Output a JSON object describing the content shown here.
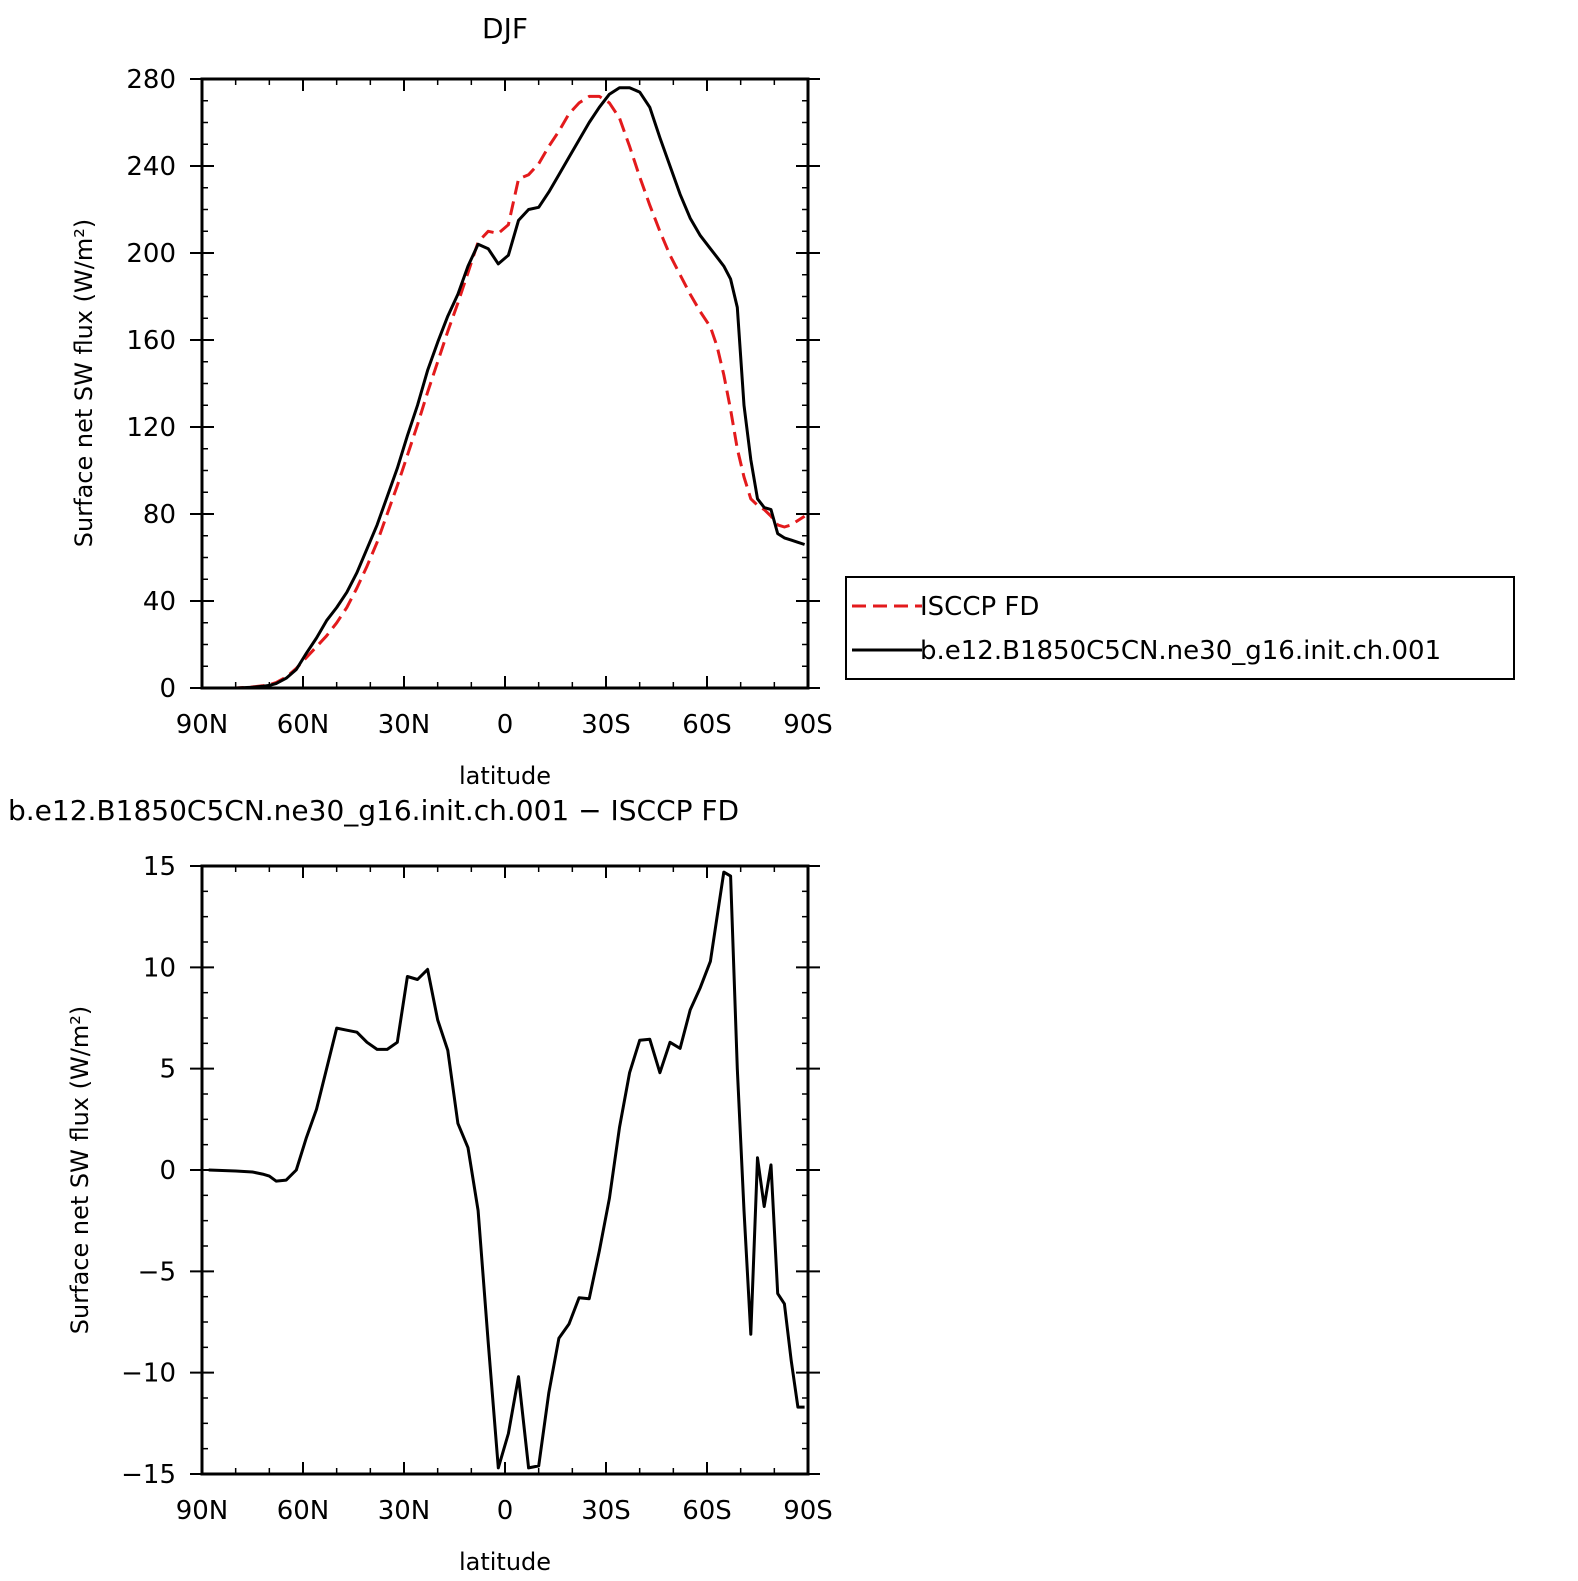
{
  "chart_data": [
    {
      "type": "line",
      "title": "DJF",
      "xlabel": "latitude",
      "ylabel": "Surface net SW flux (W/m²)",
      "xlim": [
        90,
        -90
      ],
      "ylim": [
        0,
        280
      ],
      "x_ticks": [
        90,
        60,
        30,
        0,
        -30,
        -60,
        -90
      ],
      "x_ticklabels": [
        "90N",
        "60N",
        "30N",
        "0",
        "30S",
        "60S",
        "90S"
      ],
      "y_ticks": [
        0,
        40,
        80,
        120,
        160,
        200,
        240,
        280
      ],
      "y_ticklabels": [
        "0",
        "40",
        "80",
        "120",
        "160",
        "200",
        "240",
        "280"
      ],
      "grid": false,
      "legend": "right",
      "series": [
        {
          "name": "ISCCP FD",
          "color": "#e31a1c",
          "dash": "dashed",
          "x": [
            88,
            80,
            75,
            72,
            70,
            68,
            65,
            62,
            59,
            56,
            53,
            50,
            47,
            44,
            41,
            38,
            35,
            32,
            29,
            26,
            23,
            20,
            17,
            14,
            11,
            8,
            5,
            2,
            -1,
            -4,
            -7,
            -10,
            -13,
            -16,
            -19,
            -22,
            -25,
            -28,
            -31,
            -34,
            -37,
            -40,
            -43,
            -46,
            -49,
            -52,
            -55,
            -58,
            -61,
            -63,
            -65,
            -67,
            -69,
            -71,
            -73,
            -75,
            -77,
            -79,
            -81,
            -83,
            -85,
            -87,
            -89
          ],
          "y": [
            0,
            0,
            0.5,
            1,
            1.5,
            2.5,
            5,
            9,
            14,
            19,
            24,
            30,
            37,
            46,
            56,
            67,
            80,
            93,
            107,
            121,
            136,
            150,
            164,
            177,
            191,
            205,
            210,
            209,
            213,
            234,
            236,
            241,
            249,
            256,
            264,
            269,
            272,
            272,
            269,
            262,
            249,
            235,
            222,
            210,
            199,
            190,
            181,
            173,
            166,
            157,
            144,
            128,
            110,
            97,
            87,
            84,
            82,
            79,
            75,
            74,
            75,
            77,
            79
          ]
        },
        {
          "name": "b.e12.B1850C5CN.ne30_g16.init.ch.001",
          "color": "#000000",
          "dash": "solid",
          "x": [
            88,
            80,
            75,
            72,
            70,
            68,
            65,
            62,
            59,
            56,
            53,
            50,
            47,
            44,
            41,
            38,
            35,
            32,
            29,
            26,
            23,
            20,
            17,
            14,
            11,
            8,
            5,
            2,
            -1,
            -4,
            -7,
            -10,
            -13,
            -16,
            -19,
            -22,
            -25,
            -28,
            -31,
            -34,
            -37,
            -40,
            -43,
            -46,
            -49,
            -52,
            -55,
            -58,
            -61,
            -63,
            -65,
            -67,
            -69,
            -71,
            -73,
            -75,
            -77,
            -79,
            -81,
            -83,
            -85,
            -87,
            -89
          ],
          "y": [
            0,
            0,
            0.3,
            0.8,
            1.2,
            2,
            4.5,
            8.5,
            16,
            23,
            31,
            37,
            44,
            53,
            64,
            75,
            88,
            101,
            116,
            130,
            146,
            159,
            171,
            181,
            194,
            204,
            202,
            195,
            199,
            215,
            220,
            221,
            228,
            236,
            244,
            252,
            260,
            267,
            273,
            276,
            276,
            274,
            267,
            253,
            240,
            227,
            216,
            208,
            202,
            198,
            194,
            188,
            175,
            130,
            105,
            87,
            83,
            82,
            71,
            69,
            68,
            67,
            66
          ]
        }
      ]
    },
    {
      "type": "line",
      "title": "b.e12.B1850C5CN.ne30_g16.init.ch.001 − ISCCP FD",
      "xlabel": "latitude",
      "ylabel": "Surface net SW flux (W/m²)",
      "xlim": [
        90,
        -90
      ],
      "ylim": [
        -15,
        15
      ],
      "x_ticks": [
        90,
        60,
        30,
        0,
        -30,
        -60,
        -90
      ],
      "x_ticklabels": [
        "90N",
        "60N",
        "30N",
        "0",
        "30S",
        "60S",
        "90S"
      ],
      "y_ticks": [
        -15,
        -10,
        -5,
        0,
        5,
        10,
        15
      ],
      "y_ticklabels": [
        "−15",
        "−10",
        "−5",
        "0",
        "5",
        "10",
        "15"
      ],
      "grid": false,
      "series": [
        {
          "color": "#000000",
          "dash": "solid",
          "x": [
            88,
            80,
            75,
            72,
            70,
            68,
            65,
            62,
            59,
            56,
            53,
            50,
            47,
            44,
            41,
            38,
            35,
            32,
            29,
            26,
            23,
            20,
            17,
            14,
            11,
            8,
            5,
            2,
            -1,
            -4,
            -7,
            -10,
            -13,
            -16,
            -19,
            -22,
            -25,
            -28,
            -31,
            -34,
            -37,
            -40,
            -43,
            -46,
            -49,
            -52,
            -55,
            -58,
            -61,
            -63,
            -65,
            -67,
            -69,
            -71,
            -73,
            -75,
            -77,
            -79,
            -81,
            -83,
            -85,
            -87,
            -89
          ],
          "y": [
            0,
            -0.05,
            -0.1,
            -0.2,
            -0.3,
            -0.55,
            -0.5,
            0,
            1.6,
            3.0,
            5.0,
            7.0,
            6.9,
            6.8,
            6.3,
            5.95,
            5.95,
            6.3,
            9.55,
            9.4,
            9.9,
            7.4,
            5.9,
            2.3,
            1.1,
            -2.0,
            -8.5,
            -14.7,
            -13.0,
            -10.2,
            -14.7,
            -14.6,
            -11.0,
            -8.3,
            -7.6,
            -6.3,
            -6.35,
            -4.0,
            -1.4,
            2.1,
            4.8,
            6.4,
            6.45,
            4.8,
            6.3,
            6.0,
            7.9,
            9.0,
            10.3,
            12.5,
            14.7,
            14.5,
            5.0,
            -2.0,
            -8.1,
            0.6,
            -1.8,
            0.25,
            -6.1,
            -6.6,
            -9.4,
            -11.7,
            -11.7
          ]
        }
      ]
    }
  ]
}
